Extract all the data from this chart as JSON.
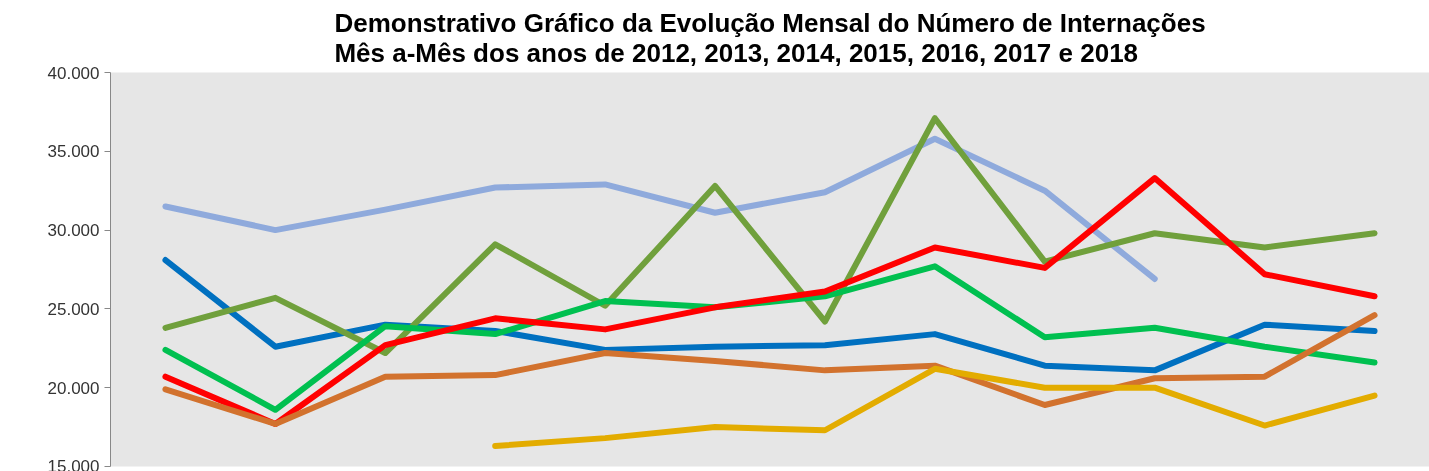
{
  "chart_data": {
    "type": "line",
    "title": "Demonstrativo Gráfico da Evolução Mensal do Número de Internações Mês a-Mês dos anos de 2012, 2013, 2014, 2015, 2016, 2017 e 2018",
    "categories": [
      null,
      null,
      null,
      null,
      null,
      null,
      null,
      null,
      null,
      null,
      null,
      null
    ],
    "ylim": [
      15000,
      40000
    ],
    "yticks": [
      {
        "value": 15000,
        "label": "15.000"
      },
      {
        "value": 20000,
        "label": "20.000"
      },
      {
        "value": 25000,
        "label": "25.000"
      },
      {
        "value": 30000,
        "label": "30.000"
      },
      {
        "value": 35000,
        "label": "35.000"
      },
      {
        "value": 40000,
        "label": "40.000"
      }
    ],
    "tick_labels": "y",
    "line_style": "solid",
    "marker": "none",
    "series": [
      {
        "color": "#8faadc",
        "values": [
          31500,
          30000,
          31300,
          32700,
          32900,
          31100,
          32400,
          35800,
          32500,
          26900,
          null,
          null
        ]
      },
      {
        "color": "#0070c0",
        "values": [
          28100,
          22600,
          24000,
          23600,
          22400,
          22600,
          22700,
          23400,
          21400,
          21100,
          24000,
          23600
        ]
      },
      {
        "color": "#70a03c",
        "values": [
          23800,
          25700,
          22200,
          29100,
          25200,
          32800,
          24200,
          37100,
          28000,
          29800,
          28900,
          29800
        ]
      },
      {
        "color": "#00c050",
        "values": [
          22400,
          18600,
          23900,
          23400,
          25500,
          25100,
          25800,
          27700,
          23200,
          23800,
          22600,
          21600
        ]
      },
      {
        "color": "#ff0000",
        "values": [
          20700,
          17700,
          22700,
          24400,
          23700,
          25100,
          26100,
          28900,
          27600,
          33300,
          27200,
          25800
        ]
      },
      {
        "color": "#d2722e",
        "values": [
          19900,
          17700,
          20700,
          20800,
          22200,
          21700,
          21100,
          21400,
          18900,
          20600,
          20700,
          24600
        ]
      },
      {
        "color": "#e3ac00",
        "values": [
          null,
          null,
          null,
          16300,
          16800,
          17500,
          17300,
          21200,
          20000,
          20000,
          17600,
          19500
        ]
      }
    ]
  }
}
